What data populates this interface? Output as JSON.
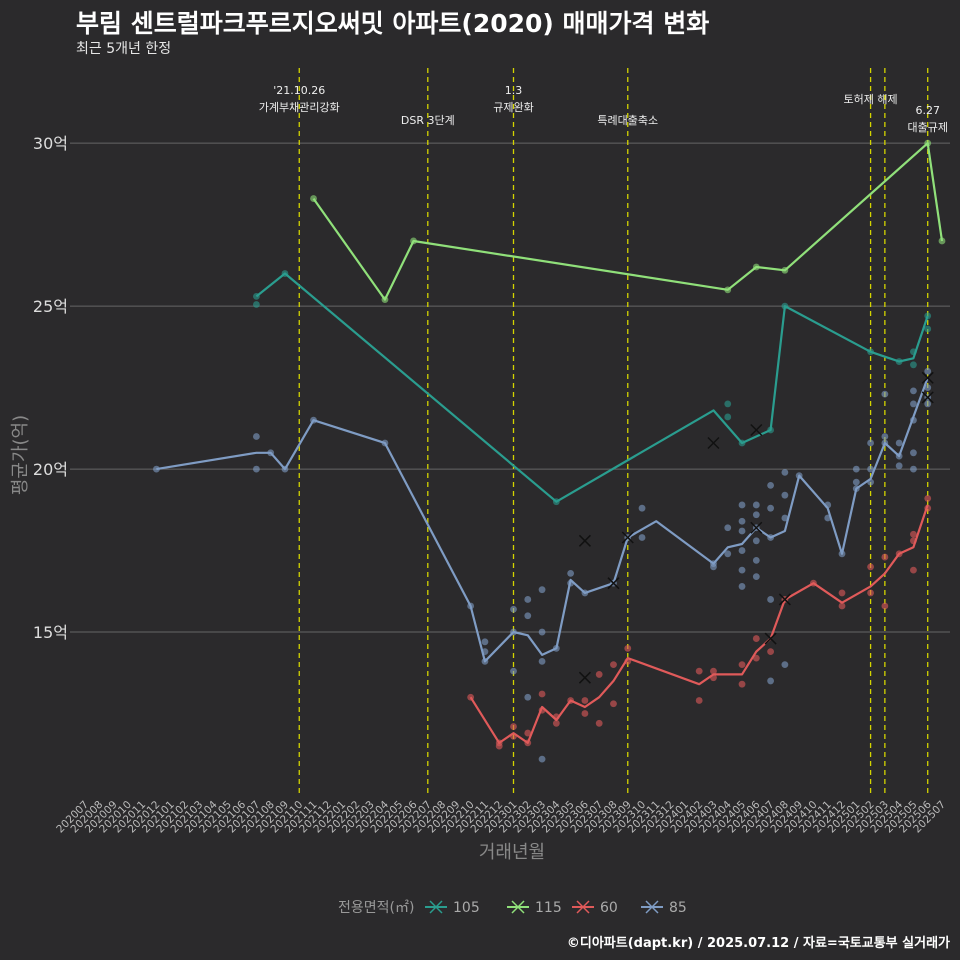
{
  "header": {
    "title": "부림 센트럴파크푸르지오써밋 아파트(2020) 매매가격 변화",
    "subtitle": "최근 5개년 한정"
  },
  "footer": {
    "caption": "©디아파트(dapt.kr) / 2025.07.12 / 자료=국토교통부 실거래가"
  },
  "chart_data": {
    "type": "line",
    "xlabel": "거래년월",
    "ylabel": "평균가(억)",
    "ylim": [
      10.0,
      32.0
    ],
    "y_ticks": [
      15,
      20,
      25,
      30
    ],
    "y_tick_labels": [
      "15억",
      "20억",
      "25억",
      "30억"
    ],
    "x_categories": [
      "202007",
      "202008",
      "202009",
      "202010",
      "202011",
      "202012",
      "202101",
      "202102",
      "202103",
      "202104",
      "202105",
      "202106",
      "202107",
      "202108",
      "202109",
      "202110",
      "202111",
      "202112",
      "202201",
      "202202",
      "202203",
      "202204",
      "202205",
      "202206",
      "202207",
      "202208",
      "202209",
      "202210",
      "202211",
      "202212",
      "202301",
      "202302",
      "202303",
      "202304",
      "202305",
      "202306",
      "202307",
      "202308",
      "202309",
      "202310",
      "202311",
      "202312",
      "202401",
      "202402",
      "202403",
      "202404",
      "202405",
      "202406",
      "202407",
      "202408",
      "202409",
      "202410",
      "202411",
      "202412",
      "202501",
      "202502",
      "202503",
      "202504",
      "202505",
      "202506",
      "202507"
    ],
    "legend": {
      "title": "전용면적(㎡)",
      "position": "bottom"
    },
    "colors": {
      "105": "#2a9d8f",
      "115": "#90e07a",
      "60": "#e05a5a",
      "85": "#7f9cc4",
      "event_line": "#d4d400",
      "grid": "#666666"
    },
    "events": [
      {
        "x": "202110",
        "lines": [
          "'21.10.26",
          "가계부채관리강화"
        ],
        "row": 1
      },
      {
        "x": "202207",
        "lines": [
          "DSR 3단계"
        ],
        "row": 2
      },
      {
        "x": "202301",
        "lines": [
          "1.3",
          "규제완화"
        ],
        "row": 1
      },
      {
        "x": "202309",
        "lines": [
          "특례대출축소"
        ],
        "row": 2
      },
      {
        "x": "202502",
        "lines": [
          "토허제 해제"
        ],
        "row": 1
      },
      {
        "x": "202503",
        "lines": [],
        "row": 0
      },
      {
        "x": "202506",
        "lines": [
          "6.27",
          "대출규제"
        ],
        "row": 3
      }
    ],
    "series": [
      {
        "name": "105",
        "line": [
          [
            "202107",
            25.3
          ],
          [
            "202109",
            26.0
          ],
          [
            "202304",
            19.0
          ],
          [
            "202403",
            21.8
          ],
          [
            "202405",
            20.8
          ],
          [
            "202407",
            21.2
          ],
          [
            "202408",
            25.0
          ],
          [
            "202502",
            23.6
          ],
          [
            "202504",
            23.3
          ],
          [
            "202505",
            23.4
          ],
          [
            "202506",
            24.7
          ]
        ],
        "points": [
          [
            "202107",
            25.3
          ],
          [
            "202107",
            25.05
          ],
          [
            "202109",
            26.0
          ],
          [
            "202304",
            19.0
          ],
          [
            "202404",
            22.0
          ],
          [
            "202404",
            21.6
          ],
          [
            "202405",
            20.8
          ],
          [
            "202407",
            21.2
          ],
          [
            "202408",
            25.0
          ],
          [
            "202502",
            23.6
          ],
          [
            "202504",
            23.3
          ],
          [
            "202505",
            23.6
          ],
          [
            "202505",
            23.2
          ],
          [
            "202506",
            24.7
          ],
          [
            "202506",
            24.3
          ]
        ],
        "crosses": [
          [
            "202403",
            20.8
          ],
          [
            "202406",
            21.2
          ]
        ]
      },
      {
        "name": "115",
        "line": [
          [
            "202111",
            28.3
          ],
          [
            "202204",
            25.2
          ],
          [
            "202206",
            27.0
          ],
          [
            "202404",
            25.5
          ],
          [
            "202406",
            26.2
          ],
          [
            "202408",
            26.1
          ],
          [
            "202506",
            30.0
          ],
          [
            "202507",
            27.0
          ]
        ],
        "points": [
          [
            "202111",
            28.3
          ],
          [
            "202204",
            25.2
          ],
          [
            "202206",
            27.0
          ],
          [
            "202404",
            25.5
          ],
          [
            "202406",
            26.2
          ],
          [
            "202408",
            26.1
          ],
          [
            "202506",
            30.0
          ],
          [
            "202507",
            27.0
          ]
        ],
        "crosses": []
      },
      {
        "name": "60",
        "line": [
          [
            "202210",
            13.0
          ],
          [
            "202212",
            11.6
          ],
          [
            "202301",
            11.9
          ],
          [
            "202302",
            11.6
          ],
          [
            "202303",
            12.7
          ],
          [
            "202304",
            12.3
          ],
          [
            "202305",
            12.9
          ],
          [
            "202306",
            12.7
          ],
          [
            "202307",
            13.0
          ],
          [
            "202308",
            13.5
          ],
          [
            "202309",
            14.2
          ],
          [
            "202402",
            13.4
          ],
          [
            "202403",
            13.7
          ],
          [
            "202405",
            13.7
          ],
          [
            "202406",
            14.4
          ],
          [
            "202407",
            14.8
          ],
          [
            "202408",
            16.0
          ],
          [
            "202410",
            16.5
          ],
          [
            "202412",
            15.9
          ],
          [
            "202502",
            16.4
          ],
          [
            "202503",
            16.8
          ],
          [
            "202504",
            17.4
          ],
          [
            "202505",
            17.6
          ],
          [
            "202506",
            18.9
          ]
        ],
        "points": [
          [
            "202210",
            13.0
          ],
          [
            "202212",
            11.5
          ],
          [
            "202212",
            11.6
          ],
          [
            "202301",
            12.1
          ],
          [
            "202301",
            11.8
          ],
          [
            "202302",
            11.9
          ],
          [
            "202302",
            11.6
          ],
          [
            "202303",
            13.1
          ],
          [
            "202303",
            12.6
          ],
          [
            "202304",
            12.4
          ],
          [
            "202304",
            12.2
          ],
          [
            "202305",
            12.9
          ],
          [
            "202306",
            12.5
          ],
          [
            "202306",
            12.9
          ],
          [
            "202307",
            13.7
          ],
          [
            "202307",
            12.2
          ],
          [
            "202308",
            12.8
          ],
          [
            "202308",
            14.0
          ],
          [
            "202309",
            14.5
          ],
          [
            "202309",
            14.1
          ],
          [
            "202402",
            13.8
          ],
          [
            "202402",
            12.9
          ],
          [
            "202403",
            13.8
          ],
          [
            "202403",
            13.6
          ],
          [
            "202405",
            14.0
          ],
          [
            "202405",
            13.4
          ],
          [
            "202406",
            14.8
          ],
          [
            "202406",
            14.2
          ],
          [
            "202407",
            14.4
          ],
          [
            "202408",
            16.0
          ],
          [
            "202410",
            16.5
          ],
          [
            "202412",
            16.2
          ],
          [
            "202412",
            15.8
          ],
          [
            "202502",
            17.0
          ],
          [
            "202502",
            16.2
          ],
          [
            "202503",
            17.3
          ],
          [
            "202503",
            15.8
          ],
          [
            "202504",
            17.4
          ],
          [
            "202505",
            18.0
          ],
          [
            "202505",
            17.8
          ],
          [
            "202505",
            16.9
          ],
          [
            "202506",
            19.1
          ],
          [
            "202506",
            18.8
          ]
        ],
        "crosses": [
          [
            "202306",
            13.6
          ],
          [
            "202407",
            14.8
          ],
          [
            "202408",
            16.0
          ]
        ]
      },
      {
        "name": "85",
        "line": [
          [
            "202012",
            20.0
          ],
          [
            "202107",
            20.5
          ],
          [
            "202108",
            20.5
          ],
          [
            "202109",
            20.0
          ],
          [
            "202111",
            21.5
          ],
          [
            "202204",
            20.8
          ],
          [
            "202210",
            15.8
          ],
          [
            "202211",
            14.1
          ],
          [
            "202301",
            15.0
          ],
          [
            "202302",
            14.9
          ],
          [
            "202303",
            14.3
          ],
          [
            "202304",
            14.5
          ],
          [
            "202305",
            16.6
          ],
          [
            "202306",
            16.2
          ],
          [
            "202308",
            16.5
          ],
          [
            "202309",
            17.9
          ],
          [
            "202311",
            18.4
          ],
          [
            "202403",
            17.1
          ],
          [
            "202404",
            17.6
          ],
          [
            "202405",
            17.7
          ],
          [
            "202406",
            18.2
          ],
          [
            "202407",
            17.9
          ],
          [
            "202408",
            18.1
          ],
          [
            "202409",
            19.8
          ],
          [
            "202411",
            18.8
          ],
          [
            "202412",
            17.4
          ],
          [
            "202501",
            19.4
          ],
          [
            "202502",
            19.7
          ],
          [
            "202503",
            20.8
          ],
          [
            "202504",
            20.4
          ],
          [
            "202505",
            21.6
          ],
          [
            "202506",
            22.8
          ]
        ],
        "points": [
          [
            "202012",
            20.0
          ],
          [
            "202107",
            21.0
          ],
          [
            "202107",
            20.0
          ],
          [
            "202108",
            20.5
          ],
          [
            "202109",
            20.0
          ],
          [
            "202111",
            21.5
          ],
          [
            "202204",
            20.8
          ],
          [
            "202210",
            15.8
          ],
          [
            "202211",
            14.7
          ],
          [
            "202211",
            14.4
          ],
          [
            "202211",
            14.1
          ],
          [
            "202301",
            15.7
          ],
          [
            "202301",
            15.0
          ],
          [
            "202301",
            13.8
          ],
          [
            "202302",
            16.0
          ],
          [
            "202302",
            15.5
          ],
          [
            "202302",
            13.0
          ],
          [
            "202303",
            16.3
          ],
          [
            "202303",
            15.0
          ],
          [
            "202303",
            14.1
          ],
          [
            "202303",
            11.1
          ],
          [
            "202304",
            14.5
          ],
          [
            "202305",
            16.8
          ],
          [
            "202305",
            16.5
          ],
          [
            "202306",
            16.2
          ],
          [
            "202308",
            16.5
          ],
          [
            "202309",
            17.9
          ],
          [
            "202310",
            18.8
          ],
          [
            "202310",
            17.9
          ],
          [
            "202403",
            17.1
          ],
          [
            "202403",
            17.0
          ],
          [
            "202404",
            18.2
          ],
          [
            "202404",
            17.4
          ],
          [
            "202405",
            18.9
          ],
          [
            "202405",
            18.4
          ],
          [
            "202405",
            18.1
          ],
          [
            "202405",
            17.5
          ],
          [
            "202405",
            16.9
          ],
          [
            "202405",
            16.4
          ],
          [
            "202406",
            18.9
          ],
          [
            "202406",
            18.6
          ],
          [
            "202406",
            18.2
          ],
          [
            "202406",
            17.8
          ],
          [
            "202406",
            17.2
          ],
          [
            "202406",
            16.7
          ],
          [
            "202407",
            19.5
          ],
          [
            "202407",
            18.8
          ],
          [
            "202407",
            17.9
          ],
          [
            "202407",
            16.0
          ],
          [
            "202407",
            13.5
          ],
          [
            "202408",
            19.9
          ],
          [
            "202408",
            19.2
          ],
          [
            "202408",
            18.5
          ],
          [
            "202408",
            14.0
          ],
          [
            "202409",
            19.8
          ],
          [
            "202411",
            18.9
          ],
          [
            "202411",
            18.5
          ],
          [
            "202412",
            17.4
          ],
          [
            "202501",
            20.0
          ],
          [
            "202501",
            19.6
          ],
          [
            "202501",
            19.4
          ],
          [
            "202502",
            20.8
          ],
          [
            "202502",
            20.0
          ],
          [
            "202502",
            19.6
          ],
          [
            "202503",
            22.3
          ],
          [
            "202503",
            21.0
          ],
          [
            "202503",
            20.8
          ],
          [
            "202504",
            20.8
          ],
          [
            "202504",
            20.4
          ],
          [
            "202504",
            20.1
          ],
          [
            "202505",
            22.4
          ],
          [
            "202505",
            22.0
          ],
          [
            "202505",
            21.5
          ],
          [
            "202505",
            20.5
          ],
          [
            "202505",
            20.0
          ],
          [
            "202506",
            23.0
          ],
          [
            "202506",
            22.5
          ],
          [
            "202506",
            22.2
          ],
          [
            "202506",
            22.0
          ]
        ],
        "crosses": [
          [
            "202306",
            17.8
          ],
          [
            "202308",
            16.5
          ],
          [
            "202309",
            17.9
          ],
          [
            "202406",
            18.2
          ],
          [
            "202506",
            22.8
          ],
          [
            "202506",
            22.2
          ]
        ]
      }
    ]
  }
}
